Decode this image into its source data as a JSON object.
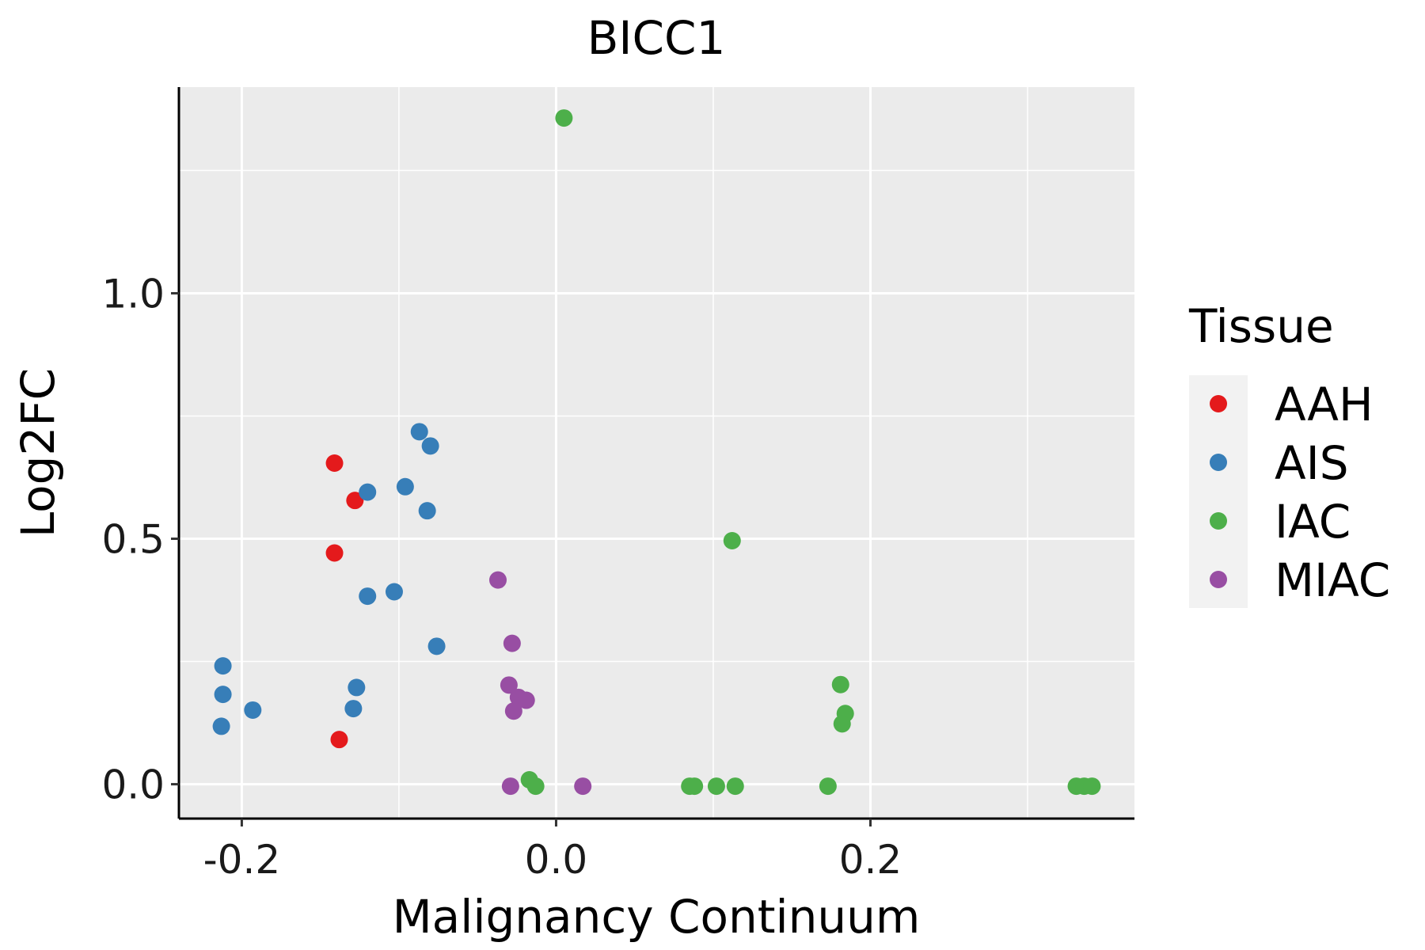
{
  "chart_data": {
    "type": "scatter",
    "title": "BICC1",
    "xlabel": "Malignancy Continuum",
    "ylabel": "Log2FC",
    "xlim": [
      -0.24,
      0.368
    ],
    "ylim": [
      -0.07,
      1.42
    ],
    "x_ticks": [
      -0.2,
      0.0,
      0.2
    ],
    "x_tick_labels": [
      "-0.2",
      "0.0",
      "0.2"
    ],
    "y_ticks": [
      0.0,
      0.5,
      1.0
    ],
    "y_tick_labels": [
      "0.0",
      "0.5",
      "1.0"
    ],
    "x_minor": [
      -0.1,
      0.1,
      0.3
    ],
    "y_minor": [
      0.25,
      0.75,
      1.25
    ],
    "grid": true,
    "legend": {
      "title": "Tissue",
      "position": "right",
      "entries": [
        {
          "name": "AAH",
          "color": "#E41A1C"
        },
        {
          "name": "AIS",
          "color": "#377EB8"
        },
        {
          "name": "IAC",
          "color": "#4DAF4A"
        },
        {
          "name": "MIAC",
          "color": "#984EA3"
        }
      ]
    },
    "series": [
      {
        "name": "AAH",
        "color": "#E41A1C",
        "points": [
          {
            "x": -0.141,
            "y": 0.654
          },
          {
            "x": -0.128,
            "y": 0.578
          },
          {
            "x": -0.141,
            "y": 0.471
          },
          {
            "x": -0.138,
            "y": 0.091
          }
        ]
      },
      {
        "name": "AIS",
        "color": "#377EB8",
        "points": [
          {
            "x": -0.087,
            "y": 0.718
          },
          {
            "x": -0.08,
            "y": 0.689
          },
          {
            "x": -0.12,
            "y": 0.595
          },
          {
            "x": -0.096,
            "y": 0.606
          },
          {
            "x": -0.082,
            "y": 0.557
          },
          {
            "x": -0.103,
            "y": 0.392
          },
          {
            "x": -0.12,
            "y": 0.383
          },
          {
            "x": -0.076,
            "y": 0.281
          },
          {
            "x": -0.212,
            "y": 0.241
          },
          {
            "x": -0.212,
            "y": 0.183
          },
          {
            "x": -0.127,
            "y": 0.197
          },
          {
            "x": -0.129,
            "y": 0.154
          },
          {
            "x": -0.193,
            "y": 0.151
          },
          {
            "x": -0.213,
            "y": 0.118
          }
        ]
      },
      {
        "name": "IAC",
        "color": "#4DAF4A",
        "points": [
          {
            "x": 0.005,
            "y": 1.357
          },
          {
            "x": 0.112,
            "y": 0.496
          },
          {
            "x": 0.181,
            "y": 0.203
          },
          {
            "x": 0.184,
            "y": 0.144
          },
          {
            "x": 0.182,
            "y": 0.123
          },
          {
            "x": -0.017,
            "y": 0.009
          },
          {
            "x": -0.013,
            "y": -0.004
          },
          {
            "x": 0.085,
            "y": -0.004
          },
          {
            "x": 0.088,
            "y": -0.004
          },
          {
            "x": 0.102,
            "y": -0.004
          },
          {
            "x": 0.114,
            "y": -0.004
          },
          {
            "x": 0.173,
            "y": -0.004
          },
          {
            "x": 0.331,
            "y": -0.004
          },
          {
            "x": 0.336,
            "y": -0.004
          },
          {
            "x": 0.341,
            "y": -0.004
          }
        ]
      },
      {
        "name": "MIAC",
        "color": "#984EA3",
        "points": [
          {
            "x": -0.037,
            "y": 0.416
          },
          {
            "x": -0.028,
            "y": 0.287
          },
          {
            "x": -0.03,
            "y": 0.202
          },
          {
            "x": -0.024,
            "y": 0.177
          },
          {
            "x": -0.019,
            "y": 0.171
          },
          {
            "x": -0.027,
            "y": 0.149
          },
          {
            "x": -0.029,
            "y": -0.004
          },
          {
            "x": 0.017,
            "y": -0.004
          }
        ]
      }
    ]
  }
}
